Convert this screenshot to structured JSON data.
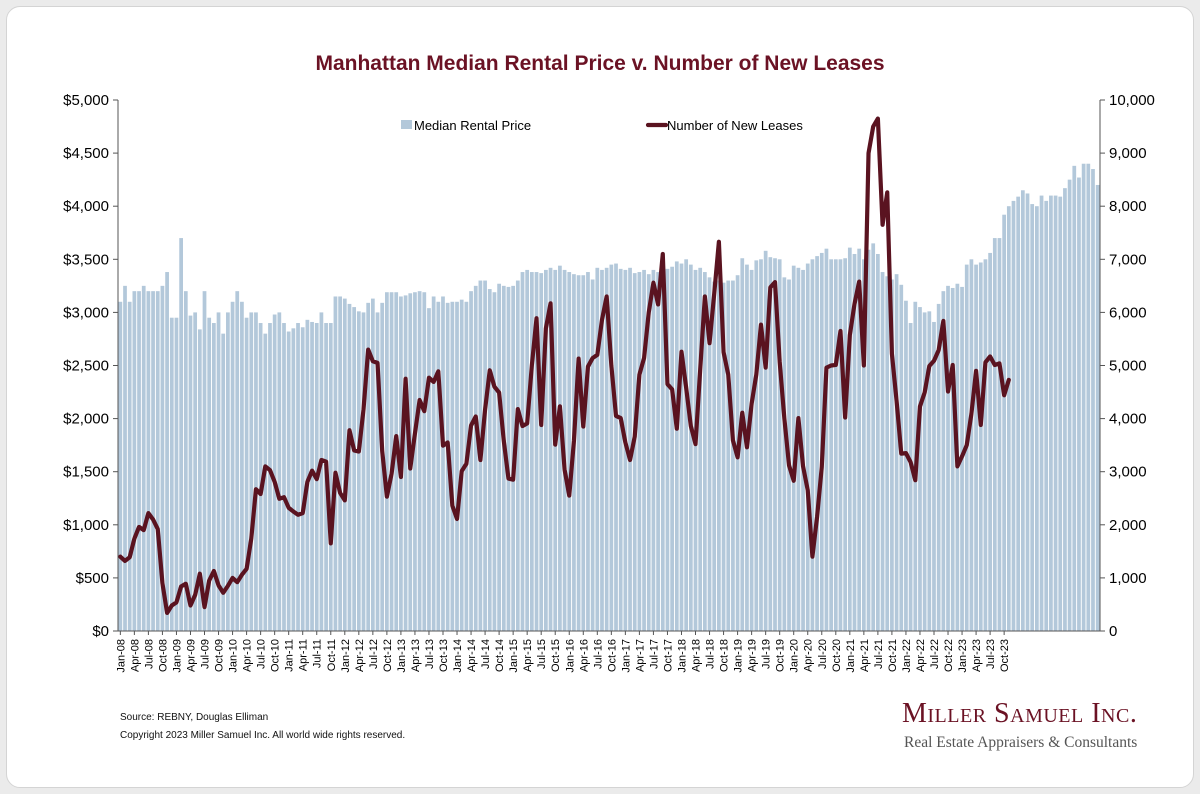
{
  "chart_data": {
    "type": "bar",
    "title": "Manhattan Median Rental Price v. Number of New Leases",
    "xlabel": "",
    "ylabel": "",
    "y_left": {
      "lim": [
        0,
        5000
      ],
      "ticks": [
        "$0",
        "$500",
        "$1,000",
        "$1,500",
        "$2,000",
        "$2,500",
        "$3,000",
        "$3,500",
        "$4,000",
        "$4,500",
        "$5,000"
      ]
    },
    "y_right": {
      "lim": [
        0,
        10000
      ],
      "ticks": [
        "0",
        "1,000",
        "2,000",
        "3,000",
        "4,000",
        "5,000",
        "6,000",
        "7,000",
        "8,000",
        "9,000",
        "10,000"
      ]
    },
    "x_tick_labels": [
      "Jan-08",
      "Apr-08",
      "Jul-08",
      "Oct-08",
      "Jan-09",
      "Apr-09",
      "Jul-09",
      "Oct-09",
      "Jan-10",
      "Apr-10",
      "Jul-10",
      "Oct-10",
      "Jan-11",
      "Apr-11",
      "Jul-11",
      "Oct-11",
      "Jan-12",
      "Apr-12",
      "Jul-12",
      "Oct-12",
      "Jan-13",
      "Apr-13",
      "Jul-13",
      "Oct-13",
      "Jan-14",
      "Apr-14",
      "Jul-14",
      "Oct-14",
      "Jan-15",
      "Apr-15",
      "Jul-15",
      "Oct-15",
      "Jan-16",
      "Apr-16",
      "Jul-16",
      "Oct-16",
      "Jan-17",
      "Apr-17",
      "Jul-17",
      "Oct-17",
      "Jan-18",
      "Apr-18",
      "Jul-18",
      "Oct-18",
      "Jan-19",
      "Apr-19",
      "Jul-19",
      "Oct-19",
      "Jan-20",
      "Apr-20",
      "Jul-20",
      "Oct-20",
      "Jan-21",
      "Apr-21",
      "Jul-21",
      "Oct-21",
      "Jan-22",
      "Apr-22",
      "Jul-22",
      "Oct-22",
      "Jan-23",
      "Apr-23",
      "Jul-23",
      "Oct-23"
    ],
    "legend_placement": "top",
    "grid": false,
    "series": [
      {
        "name": "Median Rental Price",
        "type": "bar",
        "axis": "left",
        "color": "#b3c8da",
        "values": [
          3100,
          3250,
          3100,
          3200,
          3200,
          3250,
          3200,
          3200,
          3200,
          3250,
          3380,
          2950,
          2950,
          3700,
          3200,
          2970,
          3000,
          2840,
          3200,
          2950,
          2900,
          3000,
          2800,
          3000,
          3100,
          3200,
          3100,
          2950,
          3000,
          3000,
          2900,
          2800,
          2900,
          2980,
          3000,
          2900,
          2820,
          2850,
          2900,
          2860,
          2930,
          2910,
          2900,
          3000,
          2900,
          2900,
          3150,
          3150,
          3130,
          3080,
          3050,
          3010,
          3000,
          3090,
          3130,
          3000,
          3090,
          3190,
          3190,
          3190,
          3150,
          3160,
          3180,
          3190,
          3200,
          3190,
          3040,
          3150,
          3100,
          3150,
          3090,
          3100,
          3100,
          3120,
          3100,
          3200,
          3250,
          3300,
          3300,
          3220,
          3190,
          3270,
          3250,
          3240,
          3250,
          3300,
          3380,
          3400,
          3380,
          3380,
          3370,
          3400,
          3420,
          3400,
          3440,
          3400,
          3380,
          3360,
          3350,
          3350,
          3380,
          3310,
          3420,
          3400,
          3420,
          3450,
          3460,
          3410,
          3400,
          3420,
          3370,
          3380,
          3400,
          3360,
          3400,
          3380,
          3380,
          3410,
          3430,
          3480,
          3460,
          3500,
          3450,
          3400,
          3420,
          3380,
          3330,
          3290,
          3300,
          3280,
          3300,
          3300,
          3350,
          3510,
          3450,
          3400,
          3490,
          3500,
          3580,
          3520,
          3510,
          3500,
          3330,
          3310,
          3440,
          3420,
          3400,
          3460,
          3500,
          3530,
          3560,
          3600,
          3500,
          3500,
          3500,
          3510,
          3610,
          3550,
          3600,
          3500,
          3590,
          3650,
          3550,
          3380,
          3340,
          3310,
          3360,
          3260,
          3110,
          2900,
          3100,
          3050,
          3000,
          3010,
          2910,
          3080,
          3200,
          3250,
          3230,
          3270,
          3240,
          3450,
          3500,
          3450,
          3470,
          3500,
          3560,
          3700,
          3700,
          3920,
          4000,
          4050,
          4090,
          4150,
          4120,
          4020,
          4000,
          4100,
          4050,
          4100,
          4100,
          4090,
          4170,
          4250,
          4380,
          4270,
          4400,
          4400,
          4350,
          4200
        ]
      },
      {
        "name": "Number of New Leases",
        "type": "line",
        "axis": "right",
        "color": "#5a1320",
        "values": [
          1400,
          1320,
          1390,
          1740,
          1960,
          1900,
          2220,
          2100,
          1920,
          900,
          340,
          480,
          540,
          840,
          890,
          480,
          680,
          1080,
          450,
          950,
          1130,
          860,
          720,
          850,
          1000,
          920,
          1060,
          1170,
          1740,
          2670,
          2580,
          3100,
          3030,
          2810,
          2490,
          2520,
          2320,
          2250,
          2190,
          2220,
          2810,
          3020,
          2860,
          3220,
          3190,
          1650,
          2980,
          2600,
          2460,
          3780,
          3400,
          3380,
          4170,
          5300,
          5080,
          5050,
          3390,
          2530,
          2960,
          3670,
          2900,
          4750,
          3060,
          3720,
          4350,
          4140,
          4770,
          4690,
          4890,
          3490,
          3550,
          2360,
          2110,
          3010,
          3150,
          3870,
          4040,
          3220,
          4170,
          4910,
          4600,
          4490,
          3580,
          2870,
          2850,
          4180,
          3860,
          3910,
          5000,
          5890,
          3880,
          5700,
          6170,
          3510,
          4230,
          3040,
          2550,
          3580,
          5130,
          3850,
          4980,
          5140,
          5200,
          5860,
          6300,
          5000,
          4050,
          4010,
          3550,
          3220,
          3660,
          4830,
          5140,
          6000,
          6560,
          6150,
          7100,
          4650,
          4550,
          3810,
          5260,
          4580,
          3860,
          3520,
          4920,
          6300,
          5420,
          6350,
          7330,
          5250,
          4830,
          3590,
          3270,
          4110,
          3460,
          4280,
          4830,
          5770,
          4960,
          6470,
          6570,
          5070,
          4000,
          3120,
          2830,
          4010,
          3100,
          2650,
          1400,
          2150,
          3090,
          4960,
          5000,
          5010,
          5650,
          4020,
          5570,
          6160,
          6580,
          5000,
          9000,
          9500,
          9650,
          7650,
          8260,
          5220,
          4330,
          3340,
          3350,
          3180,
          2840,
          4230,
          4490,
          4990,
          5090,
          5290,
          5840,
          4510,
          5010,
          3100,
          3290,
          3500,
          4090,
          4900,
          3880,
          5060,
          5170,
          5010,
          5040,
          4440,
          4730
        ]
      }
    ],
    "annotations": [
      "Source: REBNY, Douglas Elliman",
      "Copyright 2023 Miller Samuel Inc.  All world wide rights reserved."
    ]
  },
  "logo": {
    "name": "Miller Samuel Inc.",
    "subtitle": "Real Estate Appraisers & Consultants"
  }
}
